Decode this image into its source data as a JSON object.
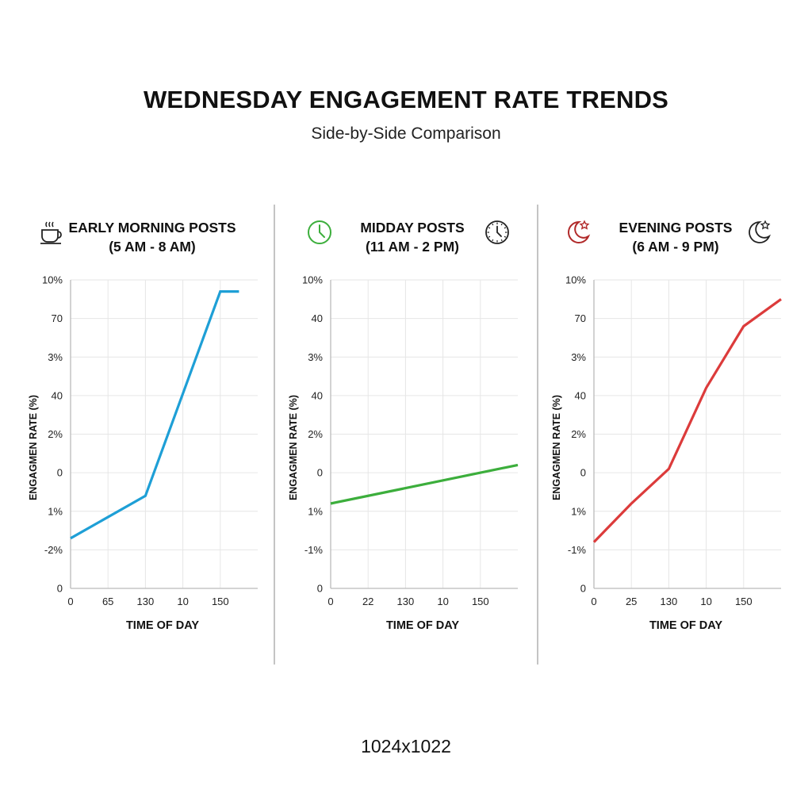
{
  "title": "WEDNESDAY ENGAGEMENT RATE TRENDS",
  "subtitle": "Side-by-Side Comparison",
  "footer": "1024x1022",
  "colors": {
    "morning": "#1e9fd6",
    "midday": "#3cae3c",
    "evening": "#dc3b3b",
    "grid": "#e6e6e6",
    "axis": "#bbbbbb"
  },
  "panels": [
    {
      "title_line1": "EARLY MORNING POSTS",
      "title_line2": "(5 AM - 8 AM)",
      "left_icon": "coffee-cup-icon",
      "right_icon": null
    },
    {
      "title_line1": "MIDDAY POSTS",
      "title_line2": "(11 AM - 2 PM)",
      "left_icon": "clock-icon",
      "right_icon": "clock-icon"
    },
    {
      "title_line1": "EVENING POSTS",
      "title_line2": "(6 AM - 9 PM)",
      "left_icon": "moon-star-icon",
      "right_icon": "moon-star-icon"
    }
  ],
  "chart_data": [
    {
      "type": "line",
      "title": "EARLY MORNING POSTS (5 AM - 8 AM)",
      "xlabel": "TIME OF DAY",
      "ylabel": "ENGAGMEN RATE (%)",
      "x_ticks": [
        "0",
        "65",
        "130",
        "10",
        "150"
      ],
      "y_ticks": [
        "0",
        "-2%",
        "1%",
        "0",
        "2%",
        "40",
        "3%",
        "70",
        "10%"
      ],
      "x": [
        0,
        2,
        4,
        4.5
      ],
      "y": [
        1.3,
        2.4,
        7.7,
        7.7
      ],
      "xlim": [
        0,
        5
      ],
      "ylim": [
        0,
        8
      ],
      "grid": true,
      "series": [
        {
          "values": [
            1.3,
            2.4,
            7.7,
            7.7
          ]
        }
      ]
    },
    {
      "type": "line",
      "title": "MIDDAY POSTS (11 AM - 2 PM)",
      "xlabel": "TIME OF DAY",
      "ylabel": "ENGAGMEN RATE (%)",
      "x_ticks": [
        "0",
        "22",
        "130",
        "10",
        "150"
      ],
      "y_ticks": [
        "0",
        "-1%",
        "1%",
        "0",
        "2%",
        "40",
        "3%",
        "40",
        "10%"
      ],
      "x": [
        0,
        5
      ],
      "y": [
        2.2,
        3.2
      ],
      "xlim": [
        0,
        5
      ],
      "ylim": [
        0,
        8
      ],
      "grid": true,
      "series": [
        {
          "values": [
            2.2,
            3.2
          ]
        }
      ]
    },
    {
      "type": "line",
      "title": "EVENING POSTS (6 AM - 9 PM)",
      "xlabel": "TIME OF DAY",
      "ylabel": "ENGAGMEN RATE (%)",
      "x_ticks": [
        "0",
        "25",
        "130",
        "10",
        "150"
      ],
      "y_ticks": [
        "0",
        "-1%",
        "1%",
        "0",
        "2%",
        "40",
        "3%",
        "70",
        "10%"
      ],
      "x": [
        0,
        1,
        2,
        3,
        4,
        5
      ],
      "y": [
        1.2,
        2.2,
        3.1,
        5.2,
        6.8,
        7.5
      ],
      "xlim": [
        0,
        5
      ],
      "ylim": [
        0,
        8
      ],
      "grid": true,
      "series": [
        {
          "values": [
            1.2,
            2.2,
            3.1,
            5.2,
            6.8,
            7.5
          ]
        }
      ]
    }
  ]
}
